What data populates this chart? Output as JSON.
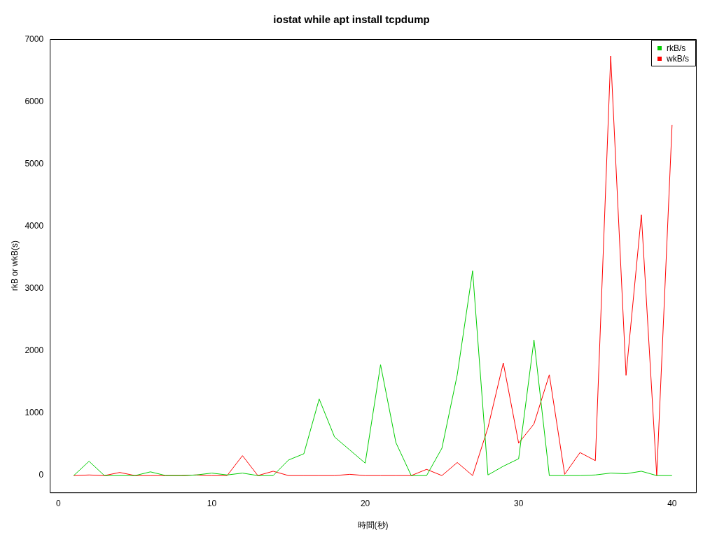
{
  "chart_data": {
    "type": "line",
    "title": "iostat while apt install tcpdump",
    "xlabel": "時間(秒)",
    "ylabel": "rkB or wkB(s)",
    "x": [
      1,
      2,
      3,
      4,
      5,
      6,
      7,
      8,
      9,
      10,
      11,
      12,
      13,
      14,
      15,
      16,
      17,
      18,
      19,
      20,
      21,
      22,
      23,
      24,
      25,
      26,
      27,
      28,
      29,
      30,
      31,
      32,
      33,
      34,
      35,
      36,
      37,
      38,
      39,
      40
    ],
    "series": [
      {
        "name": "rkB/s",
        "color": "#00cd00",
        "values": [
          0,
          230,
          0,
          0,
          0,
          60,
          0,
          0,
          10,
          40,
          10,
          40,
          0,
          0,
          250,
          350,
          1230,
          620,
          410,
          200,
          1780,
          530,
          0,
          0,
          440,
          1620,
          3290,
          10,
          150,
          270,
          2180,
          0,
          0,
          0,
          10,
          40,
          30,
          70,
          0,
          0
        ]
      },
      {
        "name": "wkB/s",
        "color": "#ff0000",
        "values": [
          0,
          10,
          0,
          50,
          0,
          0,
          0,
          0,
          10,
          0,
          0,
          320,
          0,
          70,
          0,
          0,
          0,
          0,
          20,
          0,
          0,
          0,
          0,
          100,
          0,
          210,
          0,
          770,
          1810,
          520,
          830,
          1620,
          20,
          370,
          240,
          6740,
          1610,
          4190,
          0,
          5630
        ]
      }
    ],
    "xlim": [
      -0.56,
      41.56
    ],
    "xticks": [
      0,
      10,
      20,
      30,
      40
    ],
    "ylim": [
      -270,
      7010
    ],
    "yticks": [
      0,
      1000,
      2000,
      3000,
      4000,
      5000,
      6000,
      7000
    ],
    "grid": false,
    "legend": "top right",
    "marker": "none",
    "line_style": "solid"
  }
}
